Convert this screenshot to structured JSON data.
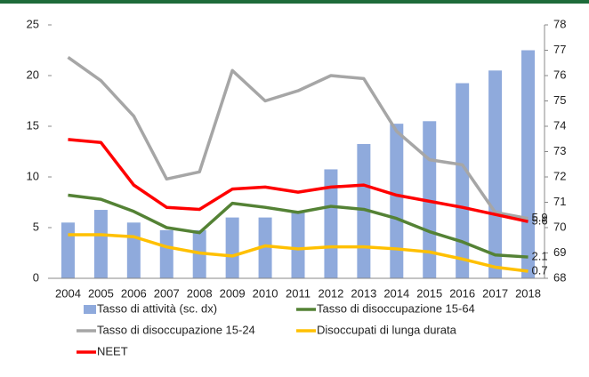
{
  "chart_data": {
    "type": "bar-line",
    "categories": [
      "2004",
      "2005",
      "2006",
      "2007",
      "2008",
      "2009",
      "2010",
      "2011",
      "2012",
      "2013",
      "2014",
      "2015",
      "2016",
      "2017",
      "2018"
    ],
    "ylim": [
      0,
      25
    ],
    "yticks": [
      0,
      5,
      10,
      15,
      20,
      25
    ],
    "y2lim": [
      68,
      78
    ],
    "y2ticks": [
      68,
      69,
      70,
      71,
      72,
      73,
      74,
      75,
      76,
      77,
      78
    ],
    "series": [
      {
        "name": "Tasso di attività (sc. dx)",
        "type": "bar",
        "axis": "y2",
        "color": "#8faadc",
        "values": [
          70.2,
          70.7,
          70.2,
          69.9,
          69.9,
          70.4,
          70.4,
          70.6,
          72.3,
          73.3,
          74.1,
          74.2,
          75.7,
          76.2,
          77.0
        ]
      },
      {
        "name": "Tasso di disoccupazione 15-64",
        "type": "line",
        "color": "#548235",
        "label_last": true,
        "values": [
          8.2,
          7.8,
          6.6,
          5.0,
          4.5,
          7.4,
          7.0,
          6.5,
          7.1,
          6.8,
          5.9,
          4.6,
          3.6,
          2.3,
          2.1
        ]
      },
      {
        "name": "Tasso di disoccupazione 15-24",
        "type": "line",
        "color": "#a6a6a6",
        "label_last": true,
        "values": [
          21.8,
          19.5,
          16.0,
          9.8,
          10.5,
          20.5,
          17.5,
          18.5,
          20.0,
          19.7,
          14.5,
          11.7,
          11.2,
          6.5,
          5.9
        ]
      },
      {
        "name": "Disoccupati di lunga durata",
        "type": "line",
        "color": "#ffc000",
        "label_last": true,
        "values": [
          4.3,
          4.3,
          4.1,
          3.1,
          2.5,
          2.2,
          3.2,
          2.9,
          3.1,
          3.1,
          2.9,
          2.6,
          1.9,
          1.1,
          0.7
        ]
      },
      {
        "name": "NEET",
        "type": "line",
        "color": "#ff0000",
        "label_last": true,
        "values": [
          13.7,
          13.4,
          9.2,
          7.0,
          6.8,
          8.8,
          9.0,
          8.5,
          9.0,
          9.2,
          8.2,
          7.6,
          7.0,
          6.3,
          5.6
        ]
      }
    ]
  }
}
